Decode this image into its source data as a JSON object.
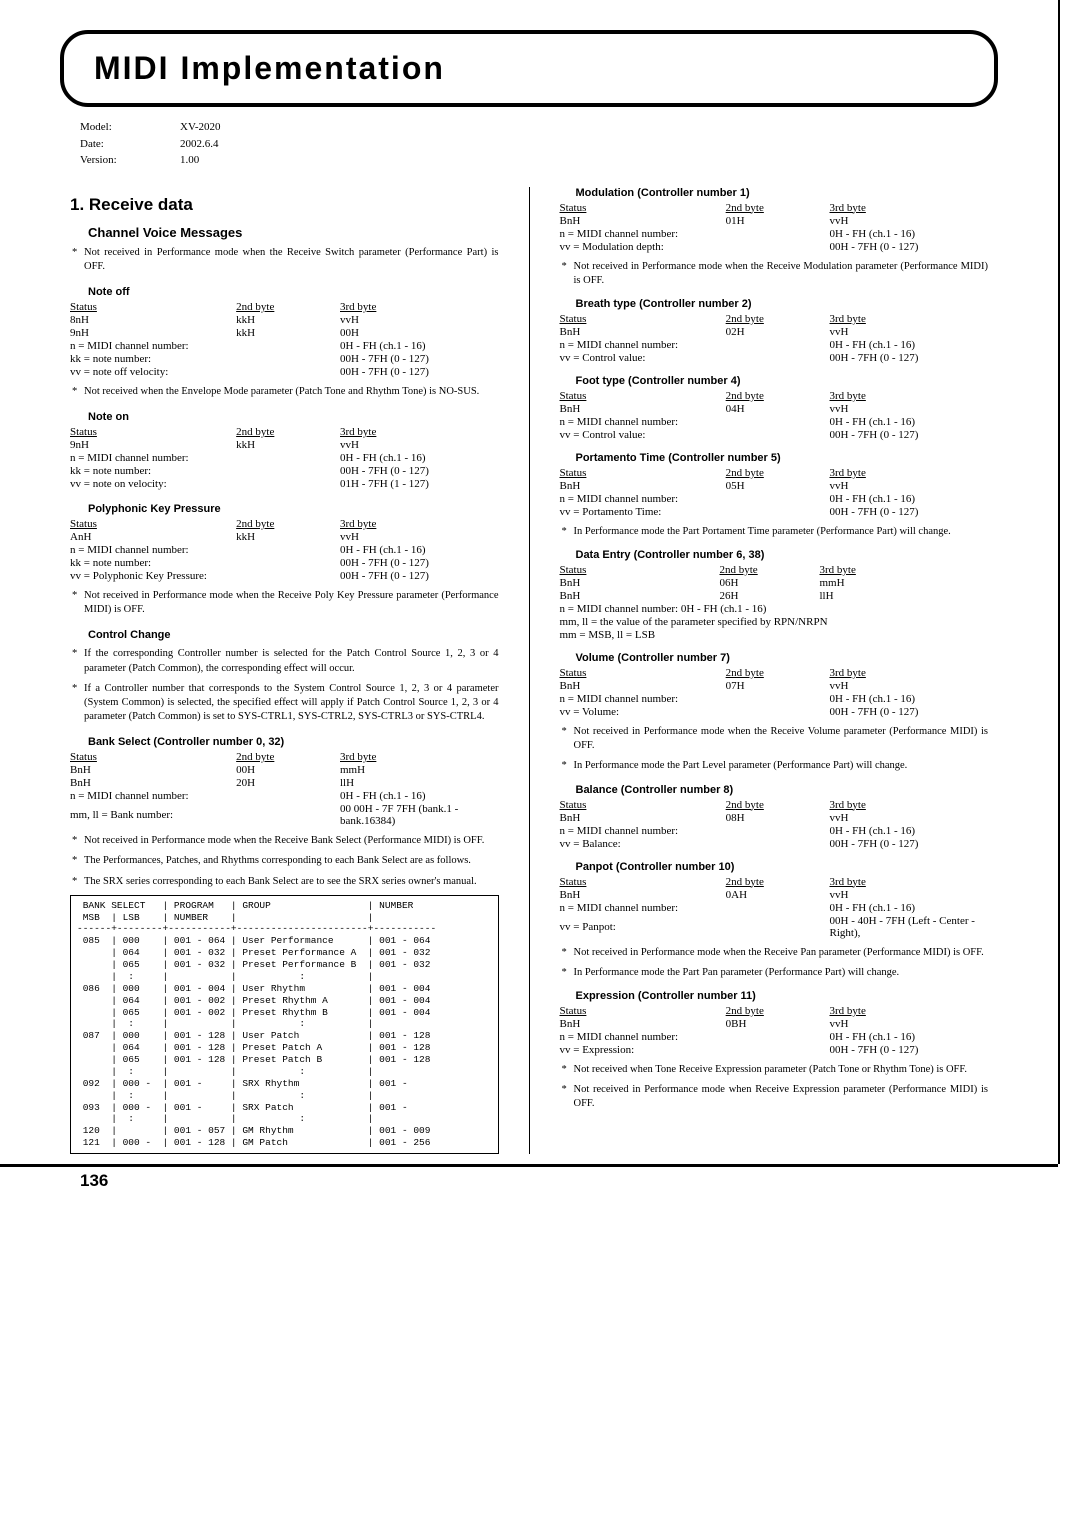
{
  "page_title": "MIDI Implementation",
  "meta": {
    "model_label": "Model:",
    "model": "XV-2020",
    "date_label": "Date:",
    "date": "2002.6.4",
    "version_label": "Version:",
    "version": "1.00"
  },
  "page_number": "136",
  "left": {
    "h2_receive": "1. Receive data",
    "h3_cvm": "Channel Voice Messages",
    "cvm_note": "Not received in Performance mode when the Receive Switch parameter (Performance Part) is OFF.",
    "noteoff_h": "Note off",
    "tbl_hdr": [
      "Status",
      "2nd byte",
      "3rd byte"
    ],
    "noteoff_rows": [
      [
        "8nH",
        "kkH",
        "vvH"
      ],
      [
        "9nH",
        "kkH",
        "00H"
      ]
    ],
    "noteoff_expl": [
      [
        "n = MIDI channel number:",
        "0H - FH (ch.1 - 16)"
      ],
      [
        "kk = note number:",
        "00H - 7FH (0 - 127)"
      ],
      [
        "vv = note off velocity:",
        "00H - 7FH (0 - 127)"
      ]
    ],
    "noteoff_note": "Not received when the Envelope Mode parameter (Patch Tone and Rhythm Tone) is NO-SUS.",
    "noteon_h": "Note on",
    "noteon_rows": [
      [
        "9nH",
        "kkH",
        "vvH"
      ]
    ],
    "noteon_expl": [
      [
        "n = MIDI channel number:",
        "0H - FH (ch.1 - 16)"
      ],
      [
        "kk = note number:",
        "00H - 7FH (0 - 127)"
      ],
      [
        "vv = note on velocity:",
        "01H - 7FH (1 - 127)"
      ]
    ],
    "poly_h": "Polyphonic Key Pressure",
    "poly_rows": [
      [
        "AnH",
        "kkH",
        "vvH"
      ]
    ],
    "poly_expl": [
      [
        "n = MIDI channel number:",
        "0H - FH (ch.1 - 16)"
      ],
      [
        "kk = note number:",
        "00H - 7FH (0 - 127)"
      ],
      [
        "vv = Polyphonic Key Pressure:",
        "00H - 7FH (0 - 127)"
      ]
    ],
    "poly_note": "Not received in Performance mode when the Receive Poly Key Pressure parameter (Performance MIDI) is OFF.",
    "cc_h": "Control Change",
    "cc_note1": "If the corresponding Controller number is selected for the Patch Control Source 1, 2, 3 or 4 parameter (Patch Common), the corresponding effect will occur.",
    "cc_note2": "If a Controller number that corresponds to the System Control Source 1, 2, 3 or 4 parameter (System Common) is selected, the specified effect will apply if Patch Control Source 1, 2, 3 or 4 parameter (Patch Common) is set to SYS-CTRL1, SYS-CTRL2, SYS-CTRL3 or SYS-CTRL4.",
    "bank_h": "Bank Select (Controller number 0, 32)",
    "bank_rows": [
      [
        "BnH",
        "00H",
        "mmH"
      ],
      [
        "BnH",
        "20H",
        "llH"
      ]
    ],
    "bank_expl": [
      [
        "n = MIDI channel number:",
        "0H - FH (ch.1 - 16)"
      ],
      [
        "mm, ll = Bank number:",
        "00 00H - 7F 7FH (bank.1 - bank.16384)"
      ]
    ],
    "bank_note1": "Not received in Performance mode when the Receive Bank Select (Performance MIDI) is OFF.",
    "bank_note2": "The Performances, Patches, and Rhythms corresponding to each Bank Select are as follows.",
    "bank_note3": "The SRX series corresponding to each Bank Select are to see the SRX series owner's manual.",
    "bank_table": " BANK SELECT   | PROGRAM   | GROUP                 | NUMBER\n MSB  | LSB    | NUMBER    |                       |\n------+--------+-----------+-----------------------+-----------\n 085  | 000    | 001 - 064 | User Performance      | 001 - 064\n      | 064    | 001 - 032 | Preset Performance A  | 001 - 032\n      | 065    | 001 - 032 | Preset Performance B  | 001 - 032\n      |  :     |           |           :           |\n 086  | 000    | 001 - 004 | User Rhythm           | 001 - 004\n      | 064    | 001 - 002 | Preset Rhythm A       | 001 - 004\n      | 065    | 001 - 002 | Preset Rhythm B       | 001 - 004\n      |  :     |           |           :           |\n 087  | 000    | 001 - 128 | User Patch            | 001 - 128\n      | 064    | 001 - 128 | Preset Patch A        | 001 - 128\n      | 065    | 001 - 128 | Preset Patch B        | 001 - 128\n      |  :     |           |           :           |\n 092  | 000 -  | 001 -     | SRX Rhythm            | 001 -\n      |  :     |           |           :           |\n 093  | 000 -  | 001 -     | SRX Patch             | 001 -\n      |  :     |           |           :           |\n 120  |        | 001 - 057 | GM Rhythm             | 001 - 009\n 121  | 000 -  | 001 - 128 | GM Patch              | 001 - 256"
  },
  "right": {
    "mod_h": "Modulation (Controller number 1)",
    "mod_rows": [
      [
        "BnH",
        "01H",
        "vvH"
      ]
    ],
    "mod_expl": [
      [
        "n = MIDI channel number:",
        "0H - FH (ch.1 - 16)"
      ],
      [
        "vv = Modulation depth:",
        "00H - 7FH (0 - 127)"
      ]
    ],
    "mod_note": "Not received in Performance mode when the Receive Modulation parameter (Performance MIDI) is OFF.",
    "breath_h": "Breath type (Controller number 2)",
    "breath_rows": [
      [
        "BnH",
        "02H",
        "vvH"
      ]
    ],
    "breath_expl": [
      [
        "n = MIDI channel number:",
        "0H - FH (ch.1 - 16)"
      ],
      [
        "vv = Control value:",
        "00H - 7FH (0 - 127)"
      ]
    ],
    "foot_h": "Foot type (Controller number 4)",
    "foot_rows": [
      [
        "BnH",
        "04H",
        "vvH"
      ]
    ],
    "foot_expl": [
      [
        "n = MIDI channel number:",
        "0H - FH (ch.1 - 16)"
      ],
      [
        "vv = Control value:",
        "00H - 7FH (0 - 127)"
      ]
    ],
    "porta_h": "Portamento Time (Controller number 5)",
    "porta_rows": [
      [
        "BnH",
        "05H",
        "vvH"
      ]
    ],
    "porta_expl": [
      [
        "n = MIDI channel number:",
        "0H - FH (ch.1 - 16)"
      ],
      [
        "vv = Portamento Time:",
        "00H - 7FH (0 - 127)"
      ]
    ],
    "porta_note": "In Performance mode the Part Portament Time parameter (Performance Part) will change.",
    "data_h": "Data Entry (Controller number 6, 38)",
    "data_rows": [
      [
        "BnH",
        "06H",
        "mmH"
      ],
      [
        "BnH",
        "26H",
        "llH"
      ]
    ],
    "data_expl": [
      "n = MIDI channel number: 0H - FH (ch.1 - 16)",
      "mm, ll = the value of the parameter specified by RPN/NRPN",
      "mm = MSB, ll = LSB"
    ],
    "vol_h": "Volume (Controller number 7)",
    "vol_rows": [
      [
        "BnH",
        "07H",
        "vvH"
      ]
    ],
    "vol_expl": [
      [
        "n = MIDI channel number:",
        "0H - FH (ch.1 - 16)"
      ],
      [
        "vv = Volume:",
        "00H - 7FH (0 - 127)"
      ]
    ],
    "vol_note1": "Not received in Performance mode when the Receive Volume parameter (Performance MIDI) is OFF.",
    "vol_note2": "In Performance mode the Part Level parameter (Performance Part) will change.",
    "bal_h": "Balance (Controller number 8)",
    "bal_rows": [
      [
        "BnH",
        "08H",
        "vvH"
      ]
    ],
    "bal_expl": [
      [
        "n = MIDI channel number:",
        "0H - FH (ch.1 - 16)"
      ],
      [
        "vv = Balance:",
        "00H - 7FH (0 - 127)"
      ]
    ],
    "pan_h": "Panpot (Controller number 10)",
    "pan_rows": [
      [
        "BnH",
        "0AH",
        "vvH"
      ]
    ],
    "pan_expl": [
      [
        "n = MIDI channel number:",
        "0H - FH (ch.1 - 16)"
      ],
      [
        "vv = Panpot:",
        "00H - 40H - 7FH (Left - Center - Right),"
      ]
    ],
    "pan_note1": "Not received in Performance mode when the Receive Pan parameter (Performance MIDI) is OFF.",
    "pan_note2": "In Performance mode the Part Pan parameter (Performance Part) will change.",
    "expr_h": "Expression (Controller number 11)",
    "expr_rows": [
      [
        "BnH",
        "0BH",
        "vvH"
      ]
    ],
    "expr_expl": [
      [
        "n = MIDI channel number:",
        "0H - FH (ch.1 - 16)"
      ],
      [
        "vv = Expression:",
        "00H - 7FH (0 - 127)"
      ]
    ],
    "expr_note1": "Not received when Tone Receive Expression parameter (Patch Tone or Rhythm Tone) is OFF.",
    "expr_note2": "Not received in Performance mode when Receive Expression parameter (Performance MIDI) is OFF."
  }
}
